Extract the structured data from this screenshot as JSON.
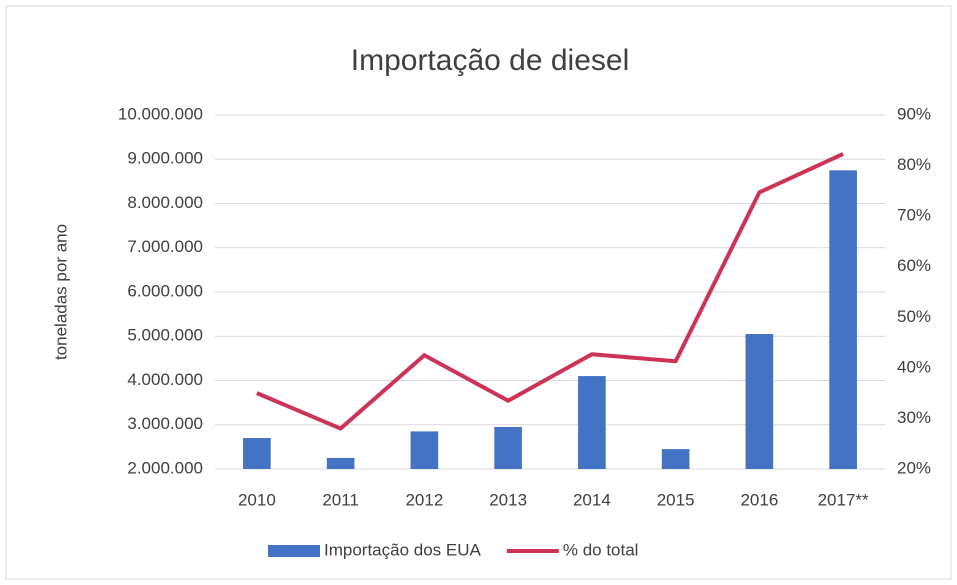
{
  "chart_data": {
    "type": "bar",
    "title": "Importação de diesel",
    "ylabel": "toneladas por ano",
    "categories": [
      "2010",
      "2011",
      "2012",
      "2013",
      "2014",
      "2015",
      "2016",
      "2017**"
    ],
    "series": [
      {
        "name": "Importação dos EUA",
        "type": "bar",
        "color": "#4472c4",
        "values": [
          2700000,
          2250000,
          2850000,
          2950000,
          4100000,
          2450000,
          5050000,
          8750000
        ]
      },
      {
        "name": "% do total",
        "type": "line",
        "axis": "y2",
        "color": "#cc3355",
        "values": [
          35,
          28,
          42.5,
          33.5,
          42.7,
          41.3,
          74.7,
          82.3
        ]
      }
    ],
    "ylim": [
      2000000,
      10000000
    ],
    "yticks": [
      {
        "value": 2000000,
        "label": "2.000.000"
      },
      {
        "value": 3000000,
        "label": "3.000.000"
      },
      {
        "value": 4000000,
        "label": "4.000.000"
      },
      {
        "value": 5000000,
        "label": "5.000.000"
      },
      {
        "value": 6000000,
        "label": "6.000.000"
      },
      {
        "value": 7000000,
        "label": "7.000.000"
      },
      {
        "value": 8000000,
        "label": "8.000.000"
      },
      {
        "value": 9000000,
        "label": "9.000.000"
      },
      {
        "value": 10000000,
        "label": "10.000.000"
      }
    ],
    "y2lim": [
      20,
      90
    ],
    "y2ticks": [
      {
        "value": 20,
        "label": "20%"
      },
      {
        "value": 30,
        "label": "30%"
      },
      {
        "value": 40,
        "label": "40%"
      },
      {
        "value": 50,
        "label": "50%"
      },
      {
        "value": 60,
        "label": "60%"
      },
      {
        "value": 70,
        "label": "70%"
      },
      {
        "value": 80,
        "label": "80%"
      },
      {
        "value": 90,
        "label": "90%"
      }
    ],
    "grid": true,
    "legend": "bottom"
  }
}
